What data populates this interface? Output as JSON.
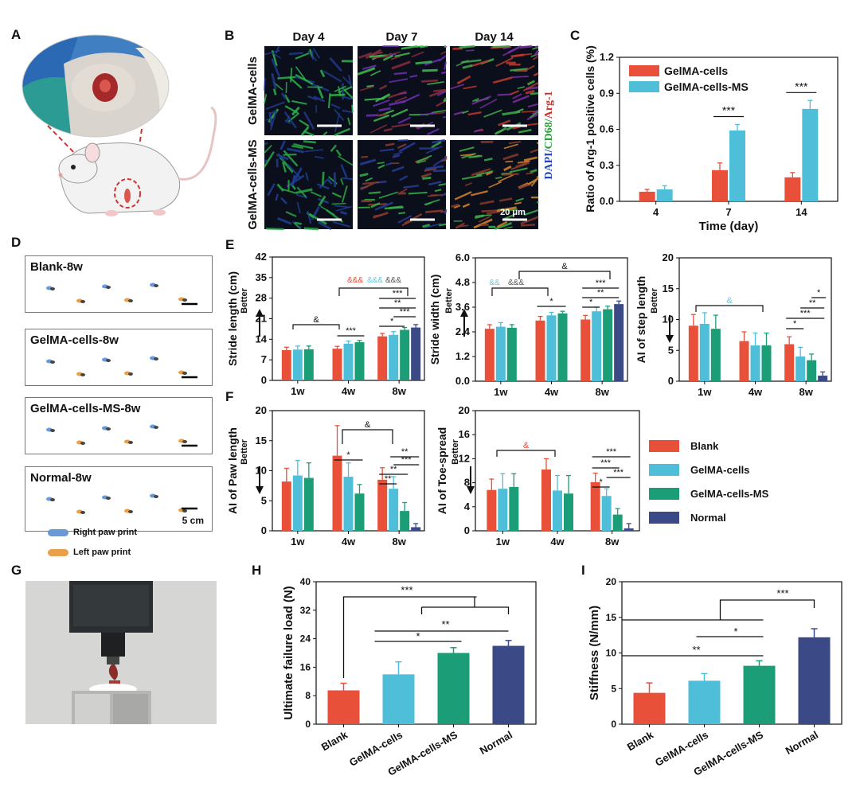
{
  "colors": {
    "blank": "#e8503a",
    "gelma": "#4fbfd9",
    "ms": "#1b9e77",
    "normal": "#3b4a86",
    "teal_mark": "#6fc6d8",
    "red_mark": "#e8503a",
    "grey_mark": "#555555"
  },
  "panels": {
    "A": "A",
    "B": "B",
    "C": "C",
    "D": "D",
    "E": "E",
    "F": "F",
    "G": "G",
    "H": "H",
    "I": "I"
  },
  "panelB": {
    "cols": [
      "Day 4",
      "Day 7",
      "Day 14"
    ],
    "rows": [
      "GelMA-cells",
      "GelMA-cells-MS"
    ],
    "stain": {
      "a": "DAPI/",
      "b": "CD68/",
      "c": "Arg-1"
    },
    "scale": "20 μm"
  },
  "panelD": {
    "titles": [
      "Blank-8w",
      "GelMA-cells-8w",
      "GelMA-cells-MS-8w",
      "Normal-8w"
    ],
    "scale": "5 cm",
    "legend": [
      "Right paw print",
      "Left paw print"
    ]
  },
  "legend_EF": [
    "Blank",
    "GelMA-cells",
    "GelMA-cells-MS",
    "Normal"
  ],
  "better": "Better",
  "chart_data": [
    {
      "id": "C",
      "type": "bar",
      "categories": [
        "4",
        "7",
        "14"
      ],
      "series": [
        {
          "name": "GelMA-cells",
          "values": [
            0.08,
            0.26,
            0.2
          ],
          "errors": [
            0.02,
            0.06,
            0.04
          ]
        },
        {
          "name": "GelMA-cells-MS",
          "values": [
            0.1,
            0.59,
            0.77
          ],
          "errors": [
            0.03,
            0.05,
            0.07
          ]
        }
      ],
      "xlabel": "Time (day)",
      "ylabel": "Ratio of Arg-1 positive cells (%)",
      "ylim": [
        0,
        1.2
      ],
      "yticks": [
        "0.0",
        "0.3",
        "0.6",
        "0.9",
        "1.2"
      ],
      "legend": "top-left",
      "sig": [
        {
          "g": 1,
          "text": "***"
        },
        {
          "g": 2,
          "text": "***"
        }
      ]
    },
    {
      "id": "E1",
      "type": "bar",
      "categories": [
        "1w",
        "4w",
        "8w"
      ],
      "series": [
        {
          "name": "Blank",
          "values": [
            10.3,
            10.8,
            15.0
          ],
          "errors": [
            1.0,
            0.8,
            1.0
          ]
        },
        {
          "name": "GelMA-cells",
          "values": [
            10.5,
            12.5,
            15.5
          ],
          "errors": [
            1.2,
            0.9,
            1.1
          ]
        },
        {
          "name": "GelMA-cells-MS",
          "values": [
            10.6,
            13.0,
            17.2
          ],
          "errors": [
            1.1,
            0.6,
            0.8
          ]
        },
        {
          "name": "Normal",
          "values": [
            null,
            null,
            18.0
          ],
          "errors": [
            0,
            0,
            1.0
          ]
        }
      ],
      "ylabel": "Stride length (cm)",
      "ylim": [
        0,
        42
      ],
      "yticks": [
        "0",
        "7",
        "14",
        "21",
        "28",
        "35",
        "42"
      ],
      "better": "up"
    },
    {
      "id": "E2",
      "type": "bar",
      "categories": [
        "1w",
        "4w",
        "8w"
      ],
      "series": [
        {
          "name": "Blank",
          "values": [
            2.55,
            2.95,
            3.0
          ],
          "errors": [
            0.2,
            0.2,
            0.2
          ]
        },
        {
          "name": "GelMA-cells",
          "values": [
            2.65,
            3.2,
            3.4
          ],
          "errors": [
            0.2,
            0.15,
            0.2
          ]
        },
        {
          "name": "GelMA-cells-MS",
          "values": [
            2.6,
            3.3,
            3.5
          ],
          "errors": [
            0.15,
            0.1,
            0.15
          ]
        },
        {
          "name": "Normal",
          "values": [
            null,
            null,
            3.75
          ],
          "errors": [
            0,
            0,
            0.15
          ]
        }
      ],
      "ylabel": "Stride width (cm)",
      "ylim": [
        0,
        6.0
      ],
      "yticks": [
        "0.0",
        "1.2",
        "2.4",
        "3.6",
        "4.8",
        "6.0"
      ],
      "better": "up"
    },
    {
      "id": "E3",
      "type": "bar",
      "categories": [
        "1w",
        "4w",
        "8w"
      ],
      "series": [
        {
          "name": "Blank",
          "values": [
            9.0,
            6.5,
            6.0
          ],
          "errors": [
            1.8,
            1.5,
            1.2
          ]
        },
        {
          "name": "GelMA-cells",
          "values": [
            9.3,
            5.8,
            4.0
          ],
          "errors": [
            1.8,
            2.0,
            1.5
          ]
        },
        {
          "name": "GelMA-cells-MS",
          "values": [
            8.5,
            5.8,
            3.4
          ],
          "errors": [
            2.2,
            2.0,
            1.0
          ]
        },
        {
          "name": "Normal",
          "values": [
            null,
            null,
            0.9
          ],
          "errors": [
            0,
            0,
            0.6
          ]
        }
      ],
      "ylabel": "AI of step length",
      "ylim": [
        0,
        20
      ],
      "yticks": [
        "0",
        "5",
        "10",
        "15",
        "20"
      ],
      "better": "down"
    },
    {
      "id": "F1",
      "type": "bar",
      "categories": [
        "1w",
        "4w",
        "8w"
      ],
      "series": [
        {
          "name": "Blank",
          "values": [
            8.2,
            12.5,
            8.5
          ],
          "errors": [
            2.2,
            5.0,
            2.0
          ]
        },
        {
          "name": "GelMA-cells",
          "values": [
            9.2,
            9.0,
            7.0
          ],
          "errors": [
            2.5,
            2.3,
            2.0
          ]
        },
        {
          "name": "GelMA-cells-MS",
          "values": [
            8.8,
            6.2,
            3.3
          ],
          "errors": [
            2.5,
            1.5,
            1.4
          ]
        },
        {
          "name": "Normal",
          "values": [
            null,
            null,
            0.6
          ],
          "errors": [
            0,
            0,
            0.6
          ]
        }
      ],
      "ylabel": "AI of Paw length",
      "ylim": [
        0,
        20
      ],
      "yticks": [
        "0",
        "5",
        "10",
        "15",
        "20"
      ],
      "better": "down"
    },
    {
      "id": "F2",
      "type": "bar",
      "categories": [
        "1w",
        "4w",
        "8w"
      ],
      "series": [
        {
          "name": "Blank",
          "values": [
            6.8,
            10.2,
            8.1
          ],
          "errors": [
            1.8,
            1.8,
            1.5
          ]
        },
        {
          "name": "GelMA-cells",
          "values": [
            7.0,
            6.7,
            5.8
          ],
          "errors": [
            2.5,
            2.5,
            1.2
          ]
        },
        {
          "name": "GelMA-cells-MS",
          "values": [
            7.3,
            6.2,
            2.7
          ],
          "errors": [
            2.2,
            3.0,
            1.0
          ]
        },
        {
          "name": "Normal",
          "values": [
            null,
            null,
            0.4
          ],
          "errors": [
            0,
            0,
            0.8
          ]
        }
      ],
      "ylabel": "AI of Toe-spread",
      "ylim": [
        0,
        20
      ],
      "yticks": [
        "0",
        "4",
        "8",
        "12",
        "16",
        "20"
      ],
      "better": "down"
    },
    {
      "id": "H",
      "type": "bar",
      "categories": [
        "Blank",
        "GelMA-cells",
        "GelMA-cells-MS",
        "Normal"
      ],
      "values": [
        9.5,
        14.0,
        20.0,
        22.0
      ],
      "errors": [
        2.0,
        3.5,
        1.5,
        1.5
      ],
      "ylabel": "Ultimate failure load (N)",
      "ylim": [
        0,
        40
      ],
      "yticks": [
        "0",
        "8",
        "16",
        "24",
        "32",
        "40"
      ],
      "sig": [
        "***",
        "**",
        "*"
      ]
    },
    {
      "id": "I",
      "type": "bar",
      "categories": [
        "Blank",
        "GelMA-cells",
        "GelMA-cells-MS",
        "Normal"
      ],
      "values": [
        4.4,
        6.1,
        8.2,
        12.2
      ],
      "errors": [
        1.4,
        1.0,
        0.7,
        1.2
      ],
      "ylabel": "Stiffness (N/mm)",
      "ylim": [
        0,
        20
      ],
      "yticks": [
        "0",
        "5",
        "10",
        "15",
        "20"
      ],
      "sig": [
        "***",
        "*",
        "**"
      ]
    }
  ],
  "sigE": {
    "e1": [
      "&&&",
      "&&&",
      "&&&",
      "&",
      "***",
      "*",
      "***",
      "**",
      "***"
    ],
    "e2": [
      "&&",
      "&&&",
      "&",
      "*",
      "***",
      "**",
      "*"
    ],
    "e3": [
      "&",
      "*",
      "**",
      "***",
      "*"
    ],
    "f1": [
      "&",
      "*",
      "**",
      "**",
      "***"
    ],
    "f2": [
      "&",
      "***",
      "***",
      "***",
      "*"
    ]
  }
}
